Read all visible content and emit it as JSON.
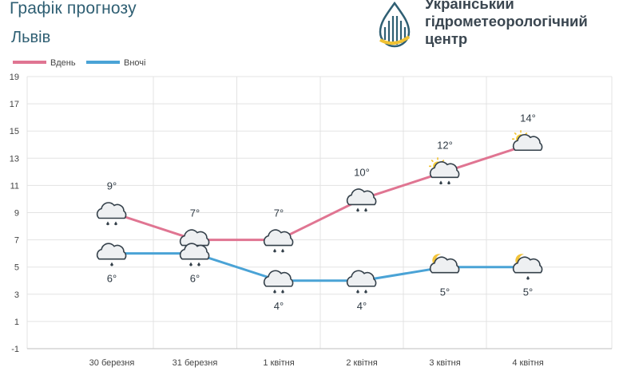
{
  "header": {
    "title": "Графік прогнозу",
    "city": "Львів"
  },
  "logo": {
    "line1": "Український",
    "line2": "гідрометеорологічний",
    "line3": "центр"
  },
  "colors": {
    "day": "#e07592",
    "night": "#4aa3d6",
    "grid": "#e3e3e3",
    "axis": "#bfbfbf"
  },
  "chart_data": {
    "type": "line",
    "categories": [
      "30 березня",
      "31 березня",
      "1 квітня",
      "2 квітня",
      "3 квітня",
      "4 квітня"
    ],
    "ylim": [
      -1,
      19
    ],
    "yticks": [
      -1,
      1,
      3,
      5,
      7,
      9,
      11,
      13,
      15,
      17,
      19
    ],
    "grid": true,
    "legend": "top-left",
    "series": [
      {
        "name": "Вдень",
        "color": "#e07592",
        "values": [
          9,
          7,
          7,
          10,
          12,
          14
        ],
        "labels": [
          "9°",
          "7°",
          "7°",
          "10°",
          "12°",
          "14°"
        ],
        "icons": [
          "cloud-rain-icon",
          "cloud-rain-icon",
          "cloud-rain-icon",
          "cloud-rain-icon",
          "sun-cloud-rain-icon",
          "sun-cloud-icon"
        ]
      },
      {
        "name": "Вночі",
        "color": "#4aa3d6",
        "values": [
          6,
          6,
          4,
          4,
          5,
          5
        ],
        "labels": [
          "6°",
          "6°",
          "4°",
          "4°",
          "5°",
          "5°"
        ],
        "icons": [
          "cloud-drizzle-icon",
          "cloud-rain-icon",
          "cloud-rain-icon",
          "cloud-rain-icon",
          "moon-cloud-icon",
          "moon-cloud-drizzle-icon"
        ]
      }
    ]
  }
}
